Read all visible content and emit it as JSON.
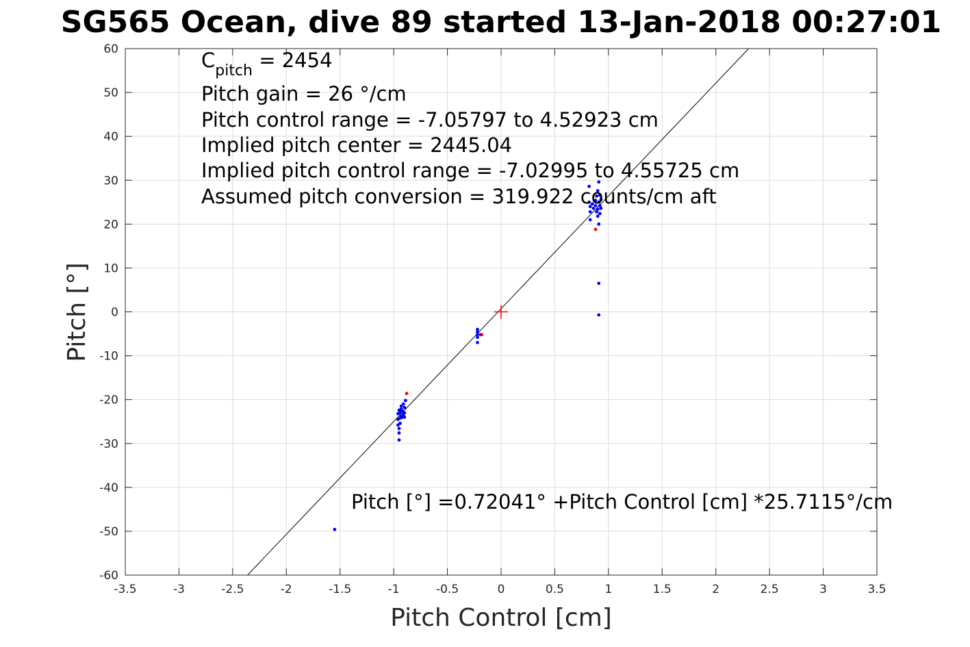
{
  "chart_data": {
    "type": "scatter",
    "title": "SG565 Ocean, dive 89 started 13-Jan-2018 00:27:01",
    "xlabel": "Pitch Control [cm]",
    "ylabel": "Pitch [°]",
    "xlim": [
      -3.5,
      3.5
    ],
    "ylim": [
      -60,
      60
    ],
    "xticks": [
      -3.5,
      -3,
      -2.5,
      -2,
      -1.5,
      -1,
      -0.5,
      0,
      0.5,
      1,
      1.5,
      2,
      2.5,
      3,
      3.5
    ],
    "xtick_labels": [
      "-3.5",
      "-3",
      "-2.5",
      "-2",
      "-1.5",
      "-1",
      "-0.5",
      "0",
      "0.5",
      "1",
      "1.5",
      "2",
      "2.5",
      "3",
      "3.5"
    ],
    "yticks": [
      -60,
      -50,
      -40,
      -30,
      -20,
      -10,
      0,
      10,
      20,
      30,
      40,
      50,
      60
    ],
    "ytick_labels": [
      "-60",
      "-50",
      "-40",
      "-30",
      "-20",
      "-10",
      "0",
      "10",
      "20",
      "30",
      "40",
      "50",
      "60"
    ],
    "grid": true,
    "colors": {
      "series": "#0000ff",
      "flagged": "#ff0000",
      "fit": "#000000",
      "center_marker": "#ff0000",
      "grid": "#dcdcdc"
    },
    "series": [
      {
        "color": "#0000ff",
        "points": [
          [
            -1.55,
            -49.6
          ],
          [
            -0.96,
            -23.2
          ],
          [
            -0.96,
            -24.5
          ],
          [
            -0.96,
            -25.8
          ],
          [
            -0.95,
            -22.4
          ],
          [
            -0.95,
            -26.6
          ],
          [
            -0.95,
            -27.6
          ],
          [
            -0.95,
            -29.2
          ],
          [
            -0.94,
            -23.0
          ],
          [
            -0.94,
            -24.2
          ],
          [
            -0.94,
            -25.4
          ],
          [
            -0.93,
            -22.2
          ],
          [
            -0.93,
            -23.8
          ],
          [
            -0.93,
            -21.5
          ],
          [
            -0.92,
            -24.0
          ],
          [
            -0.92,
            -22.6
          ],
          [
            -0.91,
            -21.0
          ],
          [
            -0.91,
            -23.4
          ],
          [
            -0.9,
            -21.8
          ],
          [
            -0.9,
            -23.0
          ],
          [
            -0.9,
            -24.0
          ],
          [
            -0.89,
            -20.2
          ],
          [
            -0.22,
            -4.0
          ],
          [
            -0.22,
            -4.6
          ],
          [
            -0.22,
            -5.2
          ],
          [
            -0.22,
            -5.8
          ],
          [
            -0.22,
            -7.0
          ],
          [
            -0.19,
            -5.2
          ],
          [
            0.82,
            28.6
          ],
          [
            0.82,
            25.0
          ],
          [
            0.83,
            24.0
          ],
          [
            0.83,
            22.8
          ],
          [
            0.83,
            21.0
          ],
          [
            0.85,
            24.6
          ],
          [
            0.86,
            23.6
          ],
          [
            0.88,
            25.4
          ],
          [
            0.88,
            24.2
          ],
          [
            0.89,
            22.8
          ],
          [
            0.89,
            26.4
          ],
          [
            0.9,
            21.8
          ],
          [
            0.9,
            27.6
          ],
          [
            0.9,
            23.4
          ],
          [
            0.91,
            25.0
          ],
          [
            0.91,
            29.6
          ],
          [
            0.91,
            20.0
          ],
          [
            0.91,
            6.5
          ],
          [
            0.91,
            -0.7
          ],
          [
            0.92,
            24.2
          ],
          [
            0.92,
            22.4
          ],
          [
            0.92,
            26.6
          ],
          [
            0.93,
            25.6
          ],
          [
            0.93,
            23.6
          ]
        ]
      },
      {
        "color": "#ff0000",
        "points": [
          [
            -0.88,
            -18.6
          ],
          [
            -0.18,
            -5.2
          ],
          [
            0.88,
            18.8
          ]
        ]
      }
    ],
    "fit_line": {
      "intercept": 0.72041,
      "slope": 25.7115
    },
    "center_marker": [
      0,
      0
    ],
    "annotations": {
      "c_main": "C",
      "c_sub": "pitch",
      "c_value": " = 2454",
      "gain": "Pitch gain = 26 °/cm",
      "control_range": "Pitch control range = -7.05797 to 4.52923 cm",
      "implied_center": "Implied pitch center = 2445.04",
      "implied_range": "Implied pitch control range = -7.02995 to 4.55725 cm",
      "conversion": "Assumed pitch conversion = 319.922 counts/cm aft",
      "fit_equation": "Pitch [°] =0.72041° +Pitch Control [cm] *25.7115°/cm"
    }
  }
}
